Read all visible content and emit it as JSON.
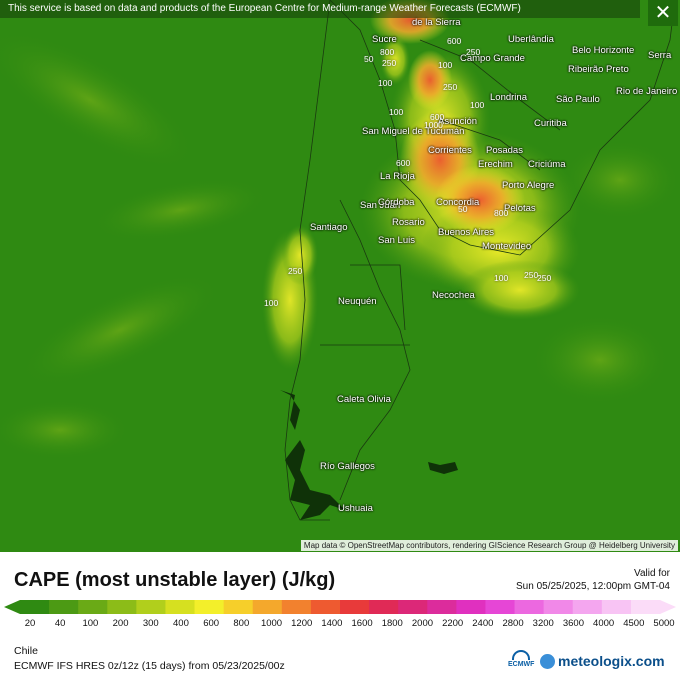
{
  "map": {
    "banner": "This service is based on data and products of the European Centre for Medium-range Weather Forecasts (ECMWF)",
    "close_icon": "✕",
    "attribution": "Map data © OpenStreetMap contributors, rendering GIScience Research Group @ Heidelberg University",
    "cities": [
      "de la Sierra",
      "Sucre",
      "Uberlândia",
      "Belo Horizonte",
      "Serra",
      "Campo Grande",
      "Ribeirão Preto",
      "Rio de Janeiro",
      "Londrina",
      "São Paulo",
      "Curitiba",
      "Asunción",
      "San Miguel de Tucumán",
      "Corrientes",
      "Posadas",
      "Erechim",
      "Criciúma",
      "La Rioja",
      "Porto Alegre",
      "Concordia",
      "Pelotas",
      "San Juan",
      "Córdoba",
      "Rosario",
      "Santiago",
      "San Luis",
      "Buenos Aires",
      "Montevideo",
      "Necochea",
      "Neuquén",
      "Caleta Olivia",
      "Río Gallegos",
      "Ushuaia"
    ],
    "contour_labels": [
      "600",
      "250",
      "800",
      "250",
      "100",
      "250",
      "100",
      "600",
      "1000",
      "100",
      "600",
      "250",
      "800",
      "50",
      "50",
      "100",
      "250",
      "250",
      "100",
      "100"
    ]
  },
  "legend": {
    "title": "CAPE (most unstable layer) (J/kg)",
    "valid_label": "Valid for",
    "valid_time": "Sun 05/25/2025, 12:00pm GMT-04",
    "scale_ticks": [
      "20",
      "40",
      "100",
      "200",
      "300",
      "400",
      "600",
      "800",
      "1000",
      "1200",
      "1400",
      "1600",
      "1800",
      "2000",
      "2200",
      "2400",
      "2800",
      "3200",
      "3600",
      "4000",
      "4500",
      "5000"
    ],
    "scale_colors": [
      "#2f8a12",
      "#4c9a14",
      "#6aaa16",
      "#8cbc18",
      "#b1cf1c",
      "#d6e020",
      "#f3ef2a",
      "#f6cf2a",
      "#f4a82c",
      "#f2812e",
      "#ee5a30",
      "#e83a3a",
      "#e02a56",
      "#dc2878",
      "#dc2c9c",
      "#e030bf",
      "#e646d6",
      "#ec68e0",
      "#f188e8",
      "#f4a6ef",
      "#f8c4f4",
      "#fbdcf8"
    ],
    "region": "Chile",
    "model": "ECMWF IFS HRES 0z/12z (15 days) from  05/23/2025/00z",
    "ecmwf_logo": "ECMWF",
    "brand": "meteologix.com"
  }
}
